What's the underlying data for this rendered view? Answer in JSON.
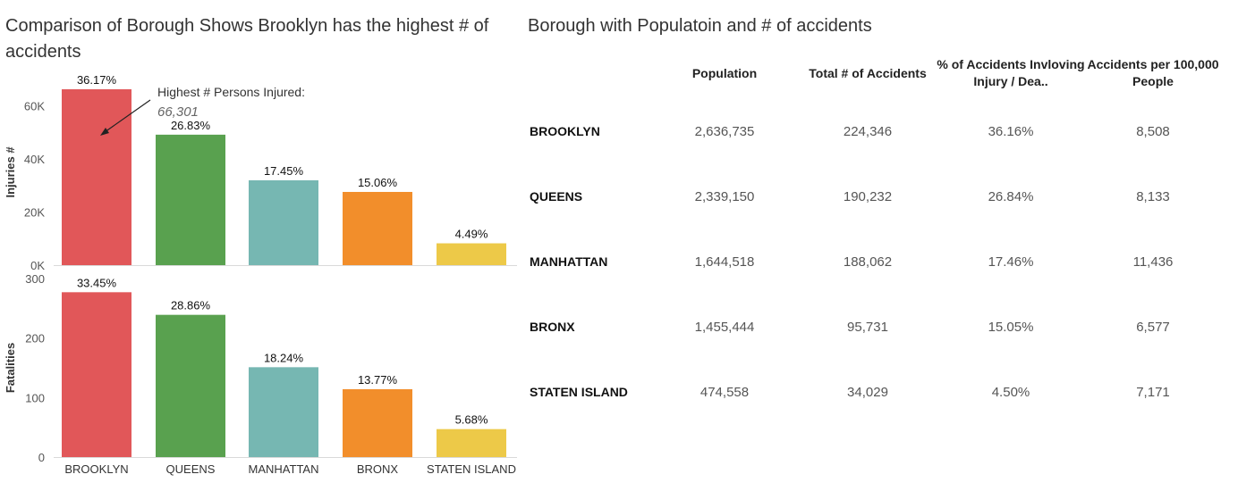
{
  "left_title": "Comparison of Borough Shows Brooklyn has the highest # of accidents",
  "right_title": "Borough with Populatoin and # of accidents",
  "chart_data": [
    {
      "type": "bar",
      "ylabel": "Injuries #",
      "categories": [
        "BROOKLYN",
        "QUEENS",
        "MANHATTAN",
        "BRONX",
        "STATEN ISLAND"
      ],
      "values": [
        66301,
        49180,
        31990,
        27600,
        8230
      ],
      "data_labels": [
        "36.17%",
        "26.83%",
        "17.45%",
        "15.06%",
        "4.49%"
      ],
      "ylim": [
        0,
        70000
      ],
      "yticks": [
        0,
        20000,
        40000,
        60000
      ],
      "ytick_labels": [
        "0K",
        "20K",
        "40K",
        "60K"
      ],
      "colors": [
        "#e15759",
        "#59a14f",
        "#76b7b2",
        "#f28e2b",
        "#edc948"
      ],
      "annotation": {
        "text": "Highest # Persons Injured:",
        "value": "66,301"
      }
    },
    {
      "type": "bar",
      "ylabel": "Fatalities",
      "categories": [
        "BROOKLYN",
        "QUEENS",
        "MANHATTAN",
        "BRONX",
        "STATEN ISLAND"
      ],
      "values": [
        277,
        239,
        151,
        114,
        47
      ],
      "data_labels": [
        "33.45%",
        "28.86%",
        "18.24%",
        "13.77%",
        "5.68%"
      ],
      "ylim": [
        0,
        300
      ],
      "yticks": [
        0,
        100,
        200,
        300
      ],
      "ytick_labels": [
        "0",
        "100",
        "200",
        "300"
      ],
      "colors": [
        "#e15759",
        "#59a14f",
        "#76b7b2",
        "#f28e2b",
        "#edc948"
      ]
    },
    {
      "type": "table",
      "columns": [
        "Population",
        "Total # of Accidents",
        "% of Accidents Invloving Injury / Dea..",
        "Accidents per 100,000 People"
      ],
      "rows": [
        {
          "borough": "BROOKLYN",
          "values": [
            "2,636,735",
            "224,346",
            "36.16%",
            "8,508"
          ]
        },
        {
          "borough": "QUEENS",
          "values": [
            "2,339,150",
            "190,232",
            "26.84%",
            "8,133"
          ]
        },
        {
          "borough": "MANHATTAN",
          "values": [
            "1,644,518",
            "188,062",
            "17.46%",
            "11,436"
          ]
        },
        {
          "borough": "BRONX",
          "values": [
            "1,455,444",
            "95,731",
            "15.05%",
            "6,577"
          ]
        },
        {
          "borough": "STATEN ISLAND",
          "values": [
            "474,558",
            "34,029",
            "4.50%",
            "7,171"
          ]
        }
      ]
    }
  ]
}
